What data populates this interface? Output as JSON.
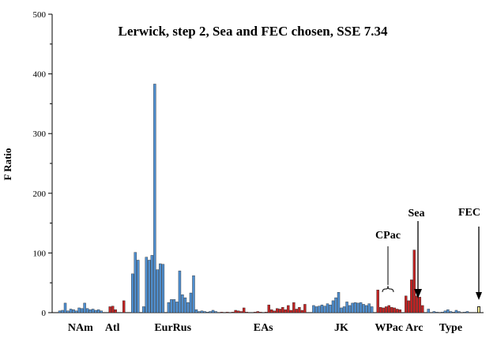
{
  "chart_data": {
    "type": "bar",
    "title": "Lerwick, step 2, Sea and FEC chosen, SSE 7.34",
    "xlabel": "",
    "ylabel": "F Ratio",
    "ylim": [
      0,
      500
    ],
    "yticks": [
      0,
      100,
      200,
      300,
      400,
      500
    ],
    "grid": false,
    "colors": {
      "blue": "#4f8fd0",
      "red": "#c02323",
      "yellow": "#f6ee9a",
      "edge": "#2a2a2a"
    },
    "groups": [
      {
        "label": "NAm",
        "color": "blue",
        "values": [
          3,
          4,
          16,
          3,
          6,
          5,
          3,
          8,
          7,
          16,
          7,
          5,
          6,
          4,
          5,
          3
        ]
      },
      {
        "label": "Atl",
        "color": "red",
        "values": [
          0,
          10,
          11,
          5,
          0,
          0,
          20
        ]
      },
      {
        "label": "EurRus",
        "color": "blue",
        "values": [
          0,
          65,
          101,
          88,
          0,
          10,
          93,
          88,
          96,
          383,
          72,
          82,
          81,
          0,
          17,
          22,
          22,
          18,
          70,
          30,
          25,
          17,
          33,
          62,
          5,
          2,
          3,
          2,
          1,
          2,
          4,
          2
        ]
      },
      {
        "label": "EAs",
        "color": "red",
        "values": [
          1,
          0,
          1,
          0,
          1,
          4,
          3,
          2,
          8,
          1,
          0,
          0,
          1,
          2,
          1,
          0,
          1,
          13,
          5,
          3,
          7,
          6,
          9,
          5,
          12,
          4,
          17,
          6,
          9,
          4,
          14
        ]
      },
      {
        "label": "JK",
        "color": "blue",
        "values": [
          0,
          12,
          10,
          11,
          13,
          11,
          15,
          13,
          20,
          25,
          34,
          8,
          10,
          18,
          12,
          16,
          17,
          16,
          17,
          14,
          12,
          15,
          10
        ]
      },
      {
        "label": "WPac",
        "color": "red",
        "values": [
          38,
          9,
          8,
          10,
          12,
          9,
          8,
          6,
          5
        ]
      },
      {
        "label": "Arc",
        "color": "red",
        "values": [
          28,
          20,
          55,
          105,
          28,
          26,
          12
        ]
      },
      {
        "label": "Type",
        "color": "blue",
        "values": [
          6,
          0,
          2,
          1,
          0,
          1,
          3,
          5,
          2,
          1,
          4,
          2,
          0,
          1,
          2,
          0,
          0
        ]
      }
    ],
    "fec_value": 10,
    "annotations": {
      "cpac": "CPac",
      "sea": "Sea",
      "fec": "FEC"
    }
  }
}
